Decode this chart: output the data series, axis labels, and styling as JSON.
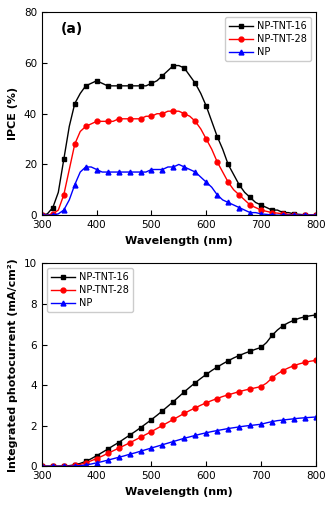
{
  "wavelength": [
    300,
    310,
    320,
    330,
    340,
    350,
    360,
    370,
    380,
    390,
    400,
    410,
    420,
    430,
    440,
    450,
    460,
    470,
    480,
    490,
    500,
    510,
    520,
    530,
    540,
    550,
    560,
    570,
    580,
    590,
    600,
    610,
    620,
    630,
    640,
    650,
    660,
    670,
    680,
    690,
    700,
    710,
    720,
    730,
    740,
    750,
    760,
    770,
    780,
    790,
    800
  ],
  "ipce_nptnt16": [
    0,
    0.5,
    3,
    9,
    22,
    35,
    44,
    48,
    51,
    52,
    53,
    52,
    51,
    51,
    51,
    51,
    51,
    51,
    51,
    51,
    52,
    53,
    55,
    57,
    59,
    59,
    58,
    55,
    52,
    48,
    43,
    37,
    31,
    26,
    20,
    16,
    12,
    9,
    7,
    5,
    4,
    3,
    2,
    2,
    1,
    1,
    0.5,
    0.3,
    0.1,
    0,
    0
  ],
  "ipce_nptnt28": [
    0,
    0,
    0.5,
    2,
    8,
    18,
    28,
    33,
    35,
    36,
    37,
    37,
    37,
    37,
    38,
    38,
    38,
    38,
    38,
    39,
    39,
    40,
    40,
    41,
    41,
    41,
    40,
    39,
    37,
    34,
    30,
    26,
    21,
    17,
    13,
    10,
    8,
    6,
    4,
    3,
    2,
    1.5,
    1,
    0.8,
    0.5,
    0.3,
    0.1,
    0,
    0,
    0,
    0
  ],
  "ipce_np": [
    0,
    0,
    0,
    0.5,
    2,
    6,
    12,
    17,
    19,
    19,
    18,
    17,
    17,
    17,
    17,
    17,
    17,
    17,
    17,
    17,
    18,
    18,
    18,
    19,
    19,
    20,
    19,
    18,
    17,
    15,
    13,
    11,
    8,
    6,
    5,
    4,
    3,
    2,
    1,
    1,
    0.5,
    0.3,
    0.1,
    0,
    0,
    0,
    0,
    0,
    0,
    0,
    0
  ],
  "pc_nptnt16": [
    0,
    0,
    0,
    0,
    0.01,
    0.03,
    0.07,
    0.14,
    0.24,
    0.37,
    0.52,
    0.68,
    0.84,
    1.01,
    1.17,
    1.35,
    1.53,
    1.71,
    1.9,
    2.1,
    2.3,
    2.51,
    2.73,
    2.96,
    3.19,
    3.43,
    3.67,
    3.9,
    4.12,
    4.33,
    4.53,
    4.72,
    4.89,
    5.05,
    5.2,
    5.34,
    5.46,
    5.57,
    5.67,
    5.77,
    5.86,
    6.1,
    6.45,
    6.72,
    6.93,
    7.08,
    7.2,
    7.3,
    7.37,
    7.42,
    7.46
  ],
  "pc_nptnt28": [
    0,
    0,
    0,
    0,
    0,
    0.01,
    0.04,
    0.09,
    0.17,
    0.27,
    0.38,
    0.5,
    0.63,
    0.76,
    0.89,
    1.02,
    1.15,
    1.29,
    1.43,
    1.57,
    1.71,
    1.86,
    2.01,
    2.16,
    2.31,
    2.46,
    2.61,
    2.75,
    2.88,
    3.01,
    3.13,
    3.24,
    3.34,
    3.44,
    3.52,
    3.6,
    3.68,
    3.75,
    3.81,
    3.87,
    3.93,
    4.1,
    4.35,
    4.56,
    4.72,
    4.85,
    4.96,
    5.05,
    5.12,
    5.18,
    5.22
  ],
  "pc_np": [
    0,
    0,
    0,
    0,
    0,
    0,
    0.01,
    0.03,
    0.06,
    0.11,
    0.17,
    0.23,
    0.3,
    0.37,
    0.44,
    0.51,
    0.59,
    0.66,
    0.74,
    0.82,
    0.9,
    0.98,
    1.06,
    1.14,
    1.22,
    1.3,
    1.38,
    1.45,
    1.52,
    1.59,
    1.65,
    1.71,
    1.76,
    1.81,
    1.86,
    1.9,
    1.94,
    1.98,
    2.01,
    2.04,
    2.07,
    2.14,
    2.2,
    2.25,
    2.28,
    2.31,
    2.34,
    2.37,
    2.39,
    2.41,
    2.43
  ],
  "color_black": "#000000",
  "color_red": "#ff0000",
  "color_blue": "#0000ff",
  "label_16": "NP-TNT-16",
  "label_28": "NP-TNT-28",
  "label_np": "NP",
  "xlabel": "Wavelength (nm)",
  "ylabel_a": "IPCE (%)",
  "ylabel_b": "Integrated photocurrent (mA/cm²)",
  "panel_a": "(a)",
  "panel_b": "(b)",
  "xlim": [
    300,
    800
  ],
  "ylim_a": [
    0,
    80
  ],
  "ylim_b": [
    0,
    10
  ],
  "yticks_a": [
    0,
    20,
    40,
    60,
    80
  ],
  "yticks_b": [
    0,
    2,
    4,
    6,
    8,
    10
  ],
  "xticks": [
    300,
    400,
    500,
    600,
    700,
    800
  ],
  "marker_square": "s",
  "marker_circle": "o",
  "marker_triangle": "^",
  "marker_size": 3.5,
  "linewidth": 1.0,
  "fontsize_label": 8,
  "fontsize_tick": 7.5,
  "fontsize_legend": 7,
  "fontsize_panel": 10
}
